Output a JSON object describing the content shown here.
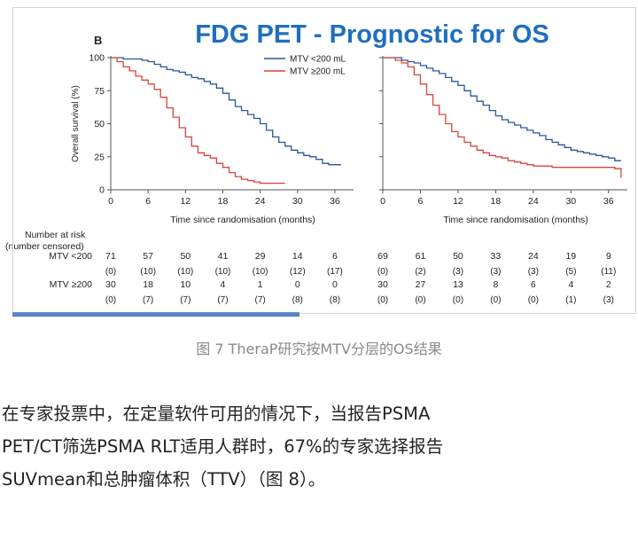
{
  "figure": {
    "title": "FDG PET - Prognostic for OS",
    "panel_label": "B",
    "risk_header": [
      "Number at risk",
      "(number censored)"
    ],
    "colors": {
      "low": "#2f5597",
      "high": "#d9443b",
      "title": "#1f6fbf",
      "bar": "#5b84c4"
    }
  },
  "chart_data": [
    {
      "type": "line",
      "xlabel": "Time since randomisation (months)",
      "ylabel": "Overall survival (%)",
      "xlim": [
        0,
        39
      ],
      "ylim": [
        0,
        100
      ],
      "x_ticks": [
        0,
        6,
        12,
        18,
        24,
        30,
        36
      ],
      "y_ticks": [
        0,
        25,
        50,
        75,
        100
      ],
      "legend": {
        "placement": "top-right",
        "entries": [
          "MTV <200 mL",
          "MTV ≥200 mL"
        ]
      },
      "series": [
        {
          "name": "MTV <200 mL",
          "color": "#2f5597",
          "x": [
            0,
            2,
            5,
            6,
            7,
            8,
            9,
            10,
            11,
            12,
            13,
            14,
            15,
            16,
            17,
            18,
            19,
            20,
            21,
            22,
            23,
            24,
            25,
            26,
            27,
            28,
            29,
            30,
            31,
            32,
            33,
            34,
            35,
            37
          ],
          "y": [
            100,
            99,
            98,
            97,
            95,
            93,
            91,
            90,
            89,
            87,
            85,
            84,
            82,
            80,
            77,
            73,
            68,
            63,
            60,
            57,
            54,
            50,
            45,
            40,
            36,
            33,
            30,
            28,
            26,
            25,
            23,
            20,
            19,
            19
          ]
        },
        {
          "name": "MTV ≥200 mL",
          "color": "#d9443b",
          "x": [
            0,
            1,
            2,
            3,
            4,
            5,
            6,
            7,
            8,
            9,
            10,
            11,
            12,
            13,
            14,
            15,
            16,
            17,
            18,
            19,
            20,
            21,
            22,
            23,
            24,
            25,
            26,
            27,
            28
          ],
          "y": [
            100,
            97,
            93,
            90,
            86,
            83,
            80,
            76,
            70,
            62,
            55,
            47,
            40,
            33,
            28,
            26,
            24,
            20,
            17,
            13,
            10,
            8,
            7,
            6,
            5,
            5,
            5,
            5,
            5
          ]
        }
      ],
      "risk_table": {
        "rows": [
          {
            "label": "MTV <200",
            "at_risk": [
              "71",
              "57",
              "50",
              "41",
              "29",
              "14",
              "6"
            ],
            "censored": [
              "(0)",
              "(10)",
              "(10)",
              "(10)",
              "(10)",
              "(12)",
              "(17)"
            ]
          },
          {
            "label": "MTV ≥200",
            "at_risk": [
              "30",
              "18",
              "10",
              "4",
              "1",
              "0",
              "0"
            ],
            "censored": [
              "(0)",
              "(7)",
              "(7)",
              "(7)",
              "(7)",
              "(8)",
              "(8)"
            ]
          }
        ]
      }
    },
    {
      "type": "line",
      "xlabel": "Time since randomisation (months)",
      "ylabel": "",
      "xlim": [
        0,
        39
      ],
      "ylim": [
        0,
        100
      ],
      "x_ticks": [
        0,
        6,
        12,
        18,
        24,
        30,
        36
      ],
      "y_ticks": [
        0,
        25,
        50,
        75,
        100
      ],
      "series": [
        {
          "name": "MTV <200 mL",
          "color": "#2f5597",
          "x": [
            0,
            2,
            3,
            4,
            5,
            6,
            7,
            8,
            9,
            10,
            11,
            12,
            13,
            14,
            15,
            16,
            17,
            18,
            19,
            20,
            21,
            22,
            23,
            24,
            25,
            26,
            27,
            28,
            29,
            30,
            31,
            32,
            33,
            34,
            35,
            36,
            37,
            38
          ],
          "y": [
            100,
            100,
            98,
            97,
            96,
            94,
            92,
            90,
            88,
            85,
            82,
            79,
            75,
            71,
            67,
            64,
            60,
            56,
            53,
            51,
            49,
            47,
            45,
            43,
            41,
            38,
            36,
            34,
            32,
            30,
            29,
            28,
            27,
            26,
            25,
            24,
            22,
            22
          ]
        },
        {
          "name": "MTV ≥200 mL",
          "color": "#d9443b",
          "x": [
            0,
            2,
            3,
            4,
            5,
            6,
            7,
            8,
            9,
            10,
            11,
            12,
            13,
            14,
            15,
            16,
            17,
            18,
            19,
            20,
            21,
            22,
            23,
            24,
            25,
            26,
            27,
            28,
            29,
            30,
            31,
            32,
            33,
            34,
            35,
            36,
            37,
            38
          ],
          "y": [
            100,
            98,
            96,
            93,
            87,
            80,
            72,
            64,
            57,
            50,
            44,
            40,
            36,
            33,
            30,
            28,
            26,
            25,
            24,
            22,
            21,
            20,
            19,
            18,
            18,
            18,
            17,
            17,
            17,
            17,
            17,
            17,
            17,
            17,
            17,
            17,
            16,
            9
          ]
        }
      ],
      "risk_table": {
        "rows": [
          {
            "label": "",
            "at_risk": [
              "69",
              "61",
              "50",
              "33",
              "24",
              "19",
              "9"
            ],
            "censored": [
              "(0)",
              "(2)",
              "(3)",
              "(3)",
              "(3)",
              "(5)",
              "(11)"
            ]
          },
          {
            "label": "",
            "at_risk": [
              "30",
              "27",
              "13",
              "8",
              "6",
              "4",
              "2"
            ],
            "censored": [
              "(0)",
              "(0)",
              "(0)",
              "(0)",
              "(0)",
              "(1)",
              "(3)"
            ]
          }
        ]
      }
    }
  ],
  "caption": "图 7 TheraP研究按MTV分层的OS结果",
  "body_lines": [
    "在专家投票中，在定量软件可用的情况下，当报告PSMA",
    "PET/CT筛选PSMA RLT适用人群时，67%的专家选择报告",
    "SUVmean和总肿瘤体积（TTV）（图 8）。"
  ]
}
